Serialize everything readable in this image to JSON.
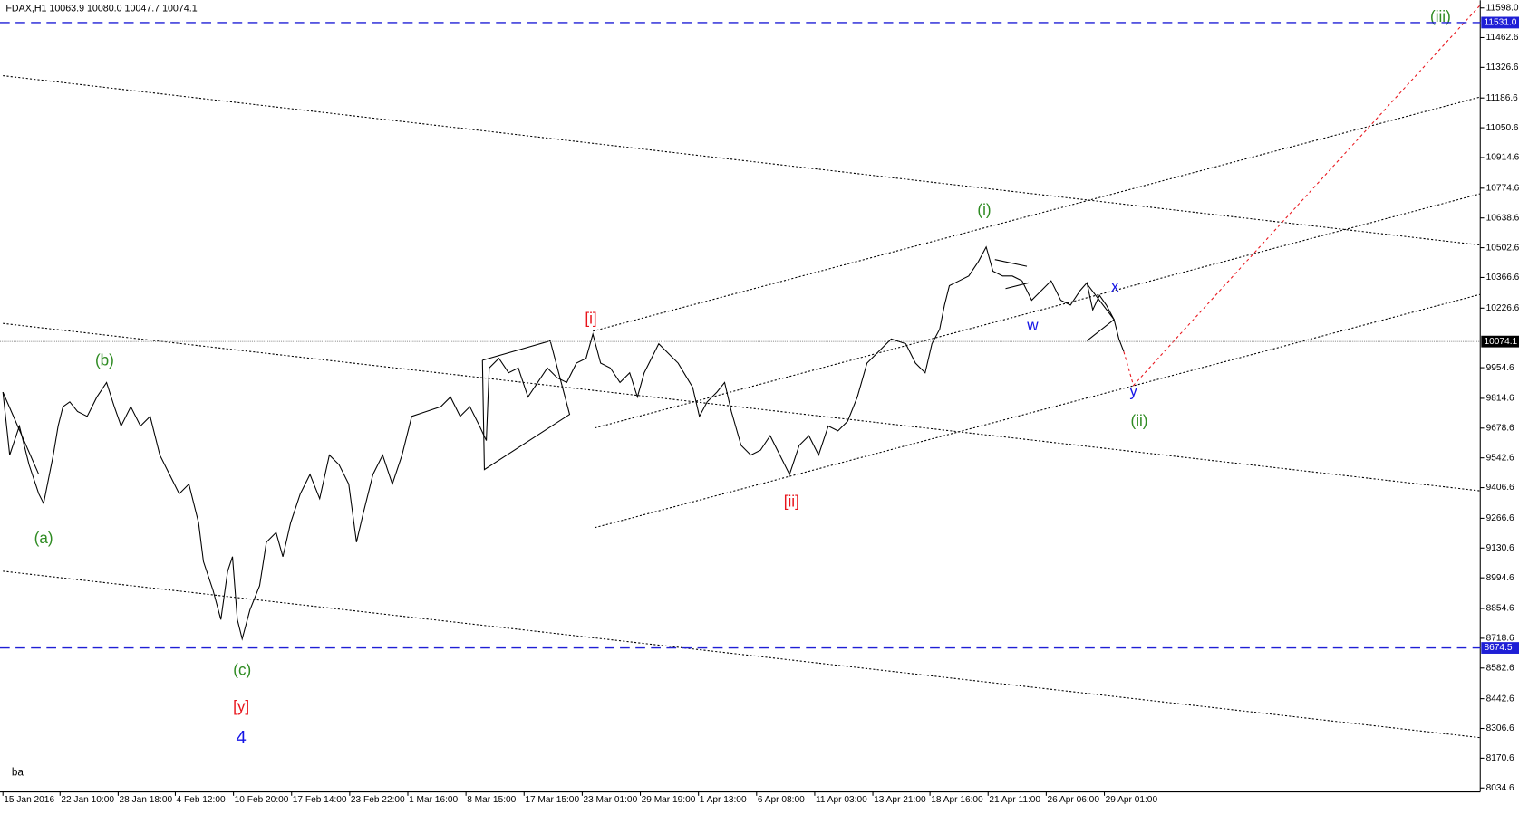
{
  "chart_data": {
    "type": "line",
    "title": "FDAX,H1  10063.9 10080.0 10047.7 10074.1",
    "corner_label": "ba",
    "xlim": [
      -3,
      1525
    ],
    "ylim": [
      8016.9,
      11633.3
    ],
    "xticks": [
      {
        "value": 0,
        "label": "15 Jan 2016"
      },
      {
        "value": 59,
        "label": "22 Jan 10:00"
      },
      {
        "value": 119,
        "label": "28 Jan 18:00"
      },
      {
        "value": 178,
        "label": "4 Feb 12:00"
      },
      {
        "value": 238,
        "label": "10 Feb 20:00"
      },
      {
        "value": 298,
        "label": "17 Feb 14:00"
      },
      {
        "value": 358,
        "label": "23 Feb 22:00"
      },
      {
        "value": 418,
        "label": "1 Mar 16:00"
      },
      {
        "value": 478,
        "label": "8 Mar 15:00"
      },
      {
        "value": 538,
        "label": "17 Mar 15:00"
      },
      {
        "value": 598,
        "label": "23 Mar 01:00"
      },
      {
        "value": 658,
        "label": "29 Mar 19:00"
      },
      {
        "value": 718,
        "label": "1 Apr 13:00"
      },
      {
        "value": 778,
        "label": "6 Apr 08:00"
      },
      {
        "value": 838,
        "label": "11 Apr 03:00"
      },
      {
        "value": 898,
        "label": "13 Apr 21:00"
      },
      {
        "value": 957,
        "label": "18 Apr 16:00"
      },
      {
        "value": 1017,
        "label": "21 Apr 11:00"
      },
      {
        "value": 1077,
        "label": "26 Apr 06:00"
      },
      {
        "value": 1137,
        "label": "29 Apr 01:00"
      }
    ],
    "yticks": [
      {
        "value": 11598,
        "label": "11598.0"
      },
      11462.6,
      11326.6,
      11186.6,
      11050.6,
      10914.6,
      10774.6,
      10638.6,
      10502.6,
      10366.6,
      10226.6,
      9954.6,
      9814.6,
      9678.6,
      9542.6,
      9406.6,
      9266.6,
      9130.6,
      8994.6,
      8854.6,
      8718.6,
      8582.6,
      8442.6,
      8306.6,
      8170.6,
      8034.6
    ],
    "hlines": [
      {
        "value": 11531,
        "label": "11531.0",
        "color": "#1f1fd6"
      },
      {
        "value": 8674.5,
        "label": "8674.5",
        "color": "#1f1fd6"
      }
    ],
    "current_price": {
      "value": 10074.1,
      "label": "10074.1"
    },
    "series": [
      {
        "name": "FDAX",
        "color": "#000000",
        "x": [
          0,
          7,
          17,
          27,
          37,
          42,
          52,
          57,
          62,
          69,
          77,
          87,
          97,
          107,
          115,
          122,
          132,
          142,
          152,
          162,
          172,
          182,
          192,
          202,
          207,
          217,
          225,
          232,
          237,
          242,
          247,
          255,
          265,
          272,
          282,
          289,
          297,
          307,
          317,
          327,
          337,
          347,
          357,
          365,
          372,
          382,
          392,
          402,
          412,
          422,
          437,
          452,
          462,
          472,
          482,
          492,
          499,
          502,
          512,
          522,
          532,
          542,
          552,
          562,
          572,
          582,
          592,
          602,
          609,
          617,
          627,
          637,
          647,
          655,
          662,
          677,
          687,
          697,
          712,
          719,
          727,
          737,
          745,
          752,
          762,
          772,
          782,
          792,
          802,
          812,
          822,
          832,
          842,
          852,
          862,
          872,
          882,
          892,
          902,
          917,
          932,
          942,
          952,
          959,
          967,
          972,
          977,
          987,
          997,
          1007,
          1015,
          1022,
          1032,
          1042,
          1052,
          1062,
          1072,
          1082,
          1092,
          1102,
          1112,
          1119,
          1125,
          1132,
          1139,
          1147,
          1152,
          1157
        ],
        "values": [
          9842.8,
          9555.4,
          9688.1,
          9511.2,
          9378.6,
          9334.4,
          9555.4,
          9688.1,
          9776.5,
          9798.6,
          9754.4,
          9732.3,
          9820.7,
          9887.0,
          9776.5,
          9688.1,
          9776.5,
          9688.1,
          9732.3,
          9555.4,
          9467.0,
          9378.6,
          9422.8,
          9246.0,
          9069.1,
          8936.5,
          8803.9,
          9024.9,
          9091.2,
          8803.9,
          8715.4,
          8848.1,
          8958.6,
          9157.5,
          9201.7,
          9091.2,
          9246.0,
          9378.6,
          9467.0,
          9356.5,
          9555.4,
          9511.2,
          9422.8,
          9157.5,
          9290.2,
          9467.0,
          9555.4,
          9422.8,
          9555.4,
          9732.3,
          9754.4,
          9776.5,
          9820.7,
          9732.3,
          9776.5,
          9688.1,
          9621.7,
          9953.3,
          9997.5,
          9931.2,
          9953.3,
          9820.7,
          9887.0,
          9953.3,
          9909.1,
          9887.0,
          9975.4,
          9997.5,
          10108.0,
          9975.4,
          9953.3,
          9887.0,
          9931.2,
          9820.7,
          9931.2,
          10063.8,
          10019.6,
          9975.4,
          9864.9,
          9732.3,
          9798.6,
          9842.8,
          9887.0,
          9754.4,
          9599.6,
          9555.4,
          9577.5,
          9643.8,
          9555.4,
          9467.0,
          9599.6,
          9643.8,
          9555.4,
          9688.1,
          9665.9,
          9710.2,
          9820.7,
          9975.4,
          10019.6,
          10085.9,
          10063.8,
          9975.4,
          9931.2,
          10063.8,
          10130.2,
          10240.7,
          10329.1,
          10351.2,
          10373.3,
          10439.6,
          10505.9,
          10395.4,
          10373.3,
          10373.3,
          10351.2,
          10262.8,
          10307.0,
          10351.2,
          10262.8,
          10240.7,
          10307.0,
          10342.4,
          10218.6,
          10284.9,
          10240.7,
          10174.4,
          10085.9,
          10028.5
        ]
      }
    ],
    "annotations": [
      {
        "text": "(iii)",
        "color": "#2e8b22"
      },
      {
        "text": "(i)",
        "color": "#2e8b22"
      },
      {
        "text": "[i]",
        "color": "#e8141b"
      },
      {
        "text": "(b)",
        "color": "#2e8b22"
      },
      {
        "text": "(a)",
        "color": "#2e8b22"
      },
      {
        "text": "(c)",
        "color": "#2e8b22"
      },
      {
        "text": "[y]",
        "color": "#e8141b"
      },
      {
        "text": "4",
        "color": "#1515e6"
      },
      {
        "text": "[ii]",
        "color": "#e8141b"
      },
      {
        "text": "w",
        "color": "#1515e6"
      },
      {
        "text": "x",
        "color": "#1515e6"
      },
      {
        "text": "y",
        "color": "#1515e6"
      },
      {
        "text": "(ii)",
        "color": "#2e8b22"
      }
    ]
  }
}
